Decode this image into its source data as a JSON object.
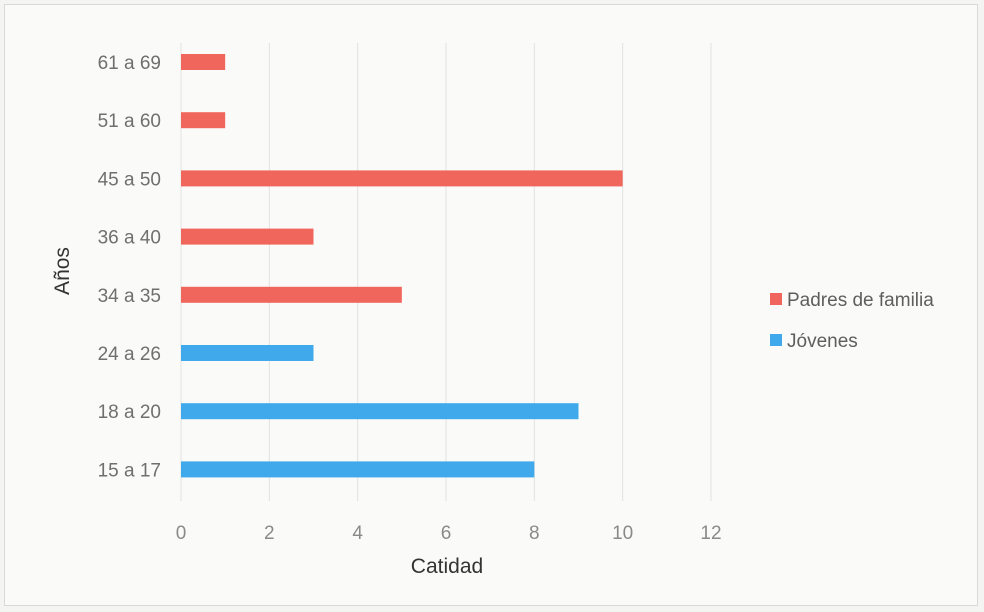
{
  "chart_data": {
    "type": "bar",
    "orientation": "horizontal",
    "xlabel": "Catidad",
    "ylabel": "Años",
    "xlim": [
      0,
      12
    ],
    "xticks": [
      "0",
      "2",
      "4",
      "6",
      "8",
      "10",
      "12"
    ],
    "grid": true,
    "legend_position": "right",
    "categories": [
      "61 a 69",
      "51 a 60",
      "45 a 50",
      "36 a 40",
      "34 a 35",
      "24 a 26",
      "18 a 20",
      "15 a 17"
    ],
    "series": [
      {
        "name": "Padres de familia",
        "color": "#f0665c",
        "values": [
          1,
          1,
          10,
          3,
          5,
          null,
          null,
          null
        ]
      },
      {
        "name": "Jóvenes",
        "color": "#3fa9ec",
        "values": [
          null,
          null,
          null,
          null,
          null,
          3,
          9,
          8
        ]
      }
    ]
  }
}
